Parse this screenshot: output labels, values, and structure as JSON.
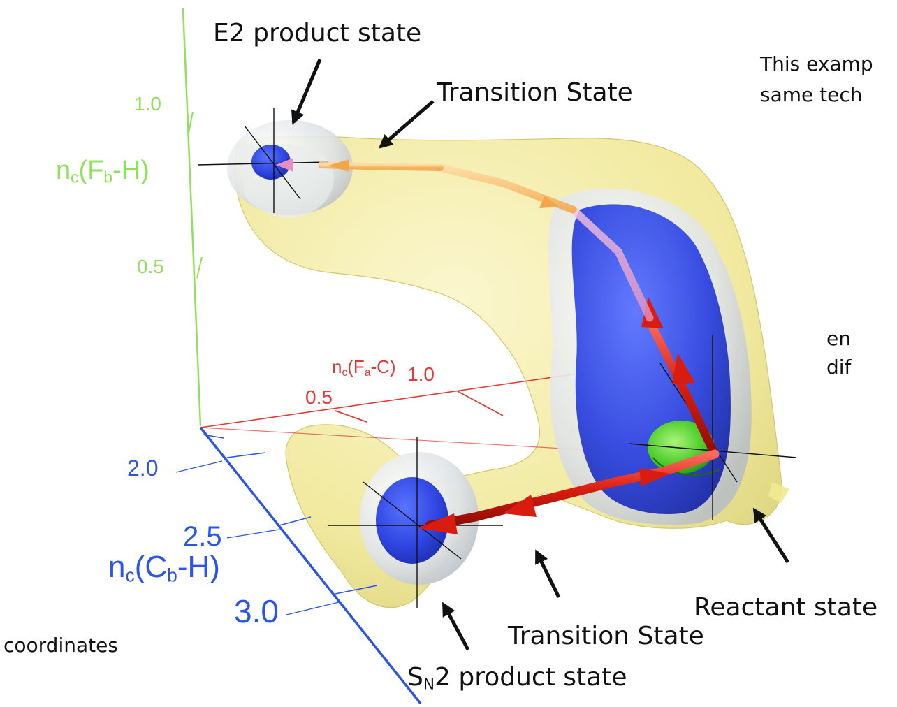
{
  "labels": {
    "e2_product": "E2 product state",
    "transition_top": "Transition State",
    "transition_bottom": "Transition State",
    "reactant": "Reactant state",
    "sn2_product": {
      "pre": "S",
      "sub": "N",
      "post": "2 product state"
    }
  },
  "axes": {
    "green": {
      "label": {
        "pre": "n",
        "sub1": "c",
        "mid": "(F",
        "sub2": "b",
        "post": "-H)"
      },
      "ticks": [
        "1.0",
        "0.5"
      ],
      "color": "#8fe05a"
    },
    "red": {
      "label": {
        "pre": "n",
        "sub1": "c",
        "mid": "(F",
        "sub2": "a",
        "post": "-C)"
      },
      "ticks": [
        "1.0",
        "0.5"
      ],
      "color": "#e53935"
    },
    "blue": {
      "label": {
        "pre": "n",
        "sub1": "c",
        "mid": "(C",
        "sub2": "b",
        "post": "-H)"
      },
      "ticks": [
        "2.0",
        "2.5",
        "3.0"
      ],
      "color": "#2b55e8"
    }
  },
  "cropped_text": {
    "line1": "This examp",
    "line2": "same tech",
    "line3": "en",
    "line4": "dif",
    "line5": "coordinates"
  }
}
